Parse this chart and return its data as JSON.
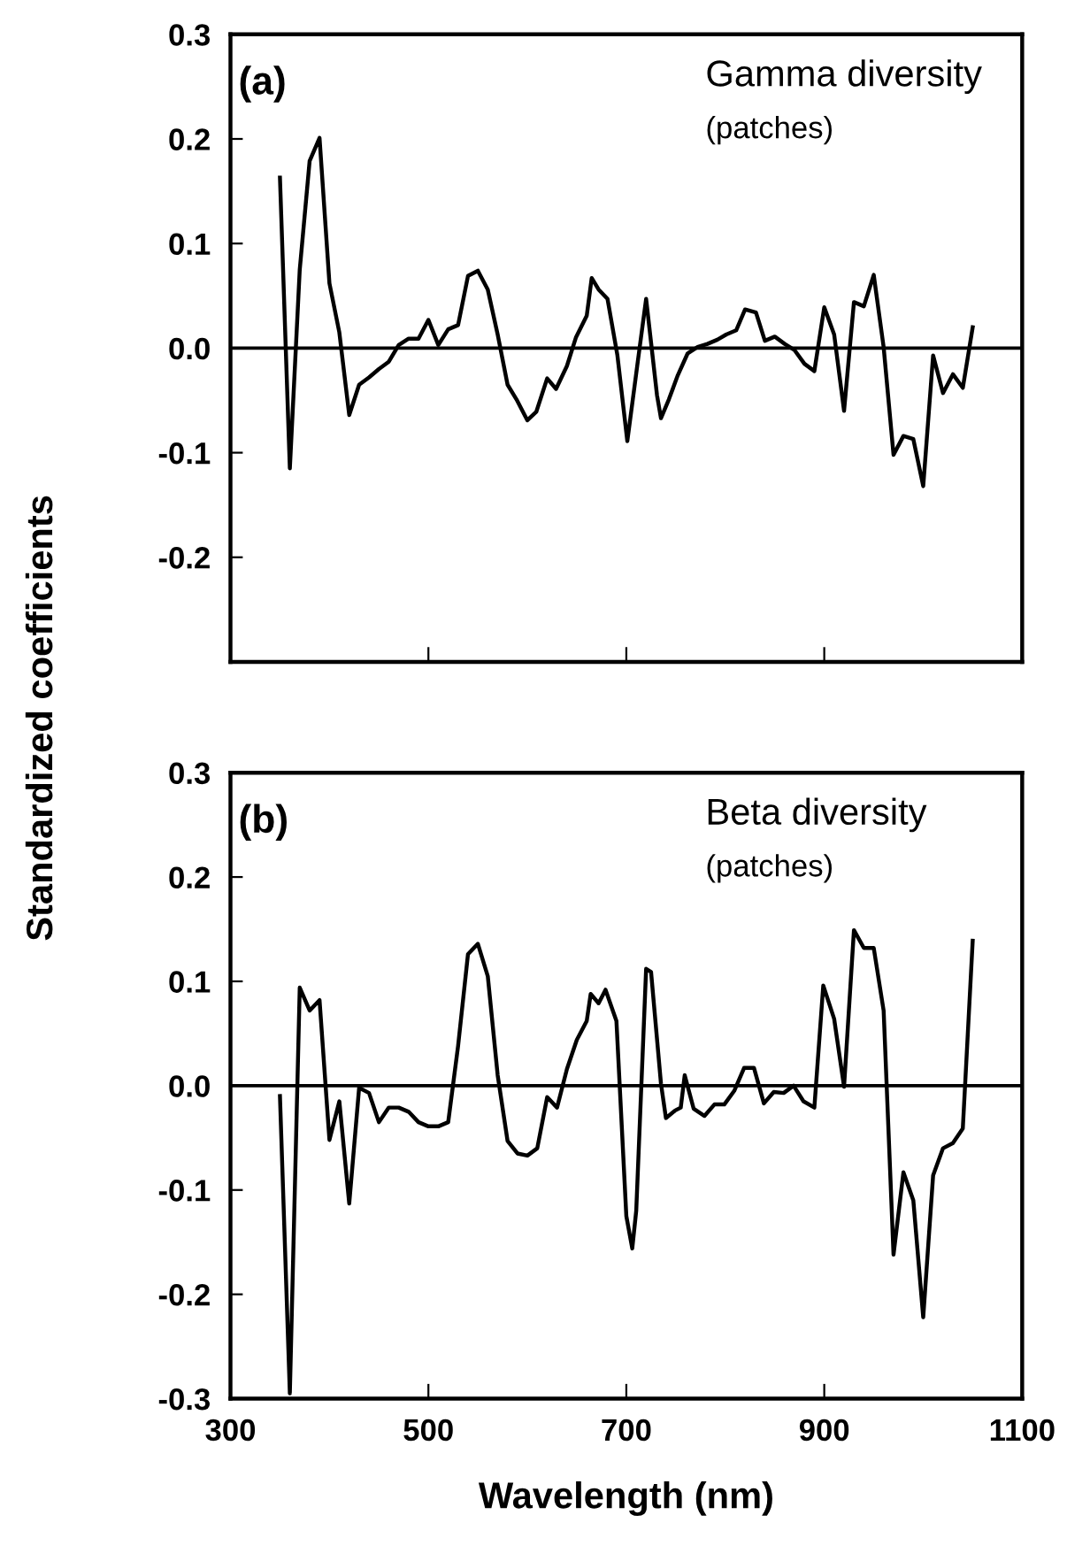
{
  "chart_data": [
    {
      "type": "line",
      "ylabel": "Standardized coefficients",
      "annotations": [
        "(a)",
        "Gamma diversity",
        "(patches)"
      ],
      "series": [
        {
          "color": "#000000",
          "x": [
            350,
            360,
            370,
            380,
            390,
            400,
            410,
            420,
            430,
            440,
            450,
            460,
            470,
            480,
            490,
            500,
            510,
            520,
            530,
            540,
            550,
            560,
            570,
            580,
            589,
            600,
            609,
            620,
            629,
            640,
            649,
            660,
            665,
            672,
            681,
            691,
            701,
            711,
            720,
            731,
            735,
            743,
            752,
            762,
            772,
            782,
            792,
            801,
            811,
            820,
            831,
            840,
            850,
            860,
            870,
            880,
            890,
            900,
            910,
            920,
            930,
            940,
            950,
            960,
            970,
            980,
            990,
            1000,
            1010,
            1020,
            1030,
            1040,
            1050
          ],
          "values": [
            0.163,
            -0.115,
            0.075,
            0.179,
            0.201,
            0.062,
            0.015,
            -0.064,
            -0.035,
            -0.028,
            -0.02,
            -0.013,
            0.003,
            0.009,
            0.009,
            0.027,
            0.003,
            0.018,
            0.022,
            0.069,
            0.074,
            0.056,
            0.013,
            -0.035,
            -0.049,
            -0.069,
            -0.061,
            -0.029,
            -0.039,
            -0.017,
            0.01,
            0.031,
            0.067,
            0.056,
            0.047,
            -0.007,
            -0.089,
            -0.017,
            0.047,
            -0.045,
            -0.067,
            -0.049,
            -0.026,
            -0.005,
            0.001,
            0.004,
            0.008,
            0.013,
            0.017,
            0.037,
            0.034,
            0.007,
            0.011,
            0.004,
            -0.002,
            -0.015,
            -0.022,
            0.039,
            0.013,
            -0.06,
            0.044,
            0.04,
            0.07,
            0.001,
            -0.102,
            -0.084,
            -0.087,
            -0.132,
            -0.007,
            -0.043,
            -0.025,
            -0.038,
            0.02
          ]
        }
      ],
      "xlim": [
        300,
        1100
      ],
      "xticks": [
        500,
        700,
        900
      ],
      "ylim": [
        -0.3,
        0.3
      ],
      "yticks": [
        -0.2,
        -0.1,
        {
          "value": 0,
          "label": "0.0"
        },
        0.1,
        0.2,
        0.3
      ],
      "ref_lines": [
        {
          "axis": "y",
          "value": 0,
          "color": "#000000"
        }
      ],
      "tick_labels": "y",
      "grid": false,
      "legend": false
    },
    {
      "type": "line",
      "xlabel": "Wavelength (nm)",
      "annotations": [
        "(b)",
        "Beta diversity",
        "(patches)"
      ],
      "series": [
        {
          "color": "#000000",
          "x": [
            350,
            360,
            370,
            380,
            390,
            400,
            410,
            420,
            430,
            440,
            450,
            460,
            470,
            480,
            490,
            500,
            510,
            520,
            530,
            540,
            550,
            560,
            570,
            580,
            590,
            600,
            610,
            620,
            630,
            640,
            650,
            660,
            664,
            672,
            679,
            690,
            700,
            706,
            710,
            720,
            725,
            735,
            740,
            749,
            755,
            759,
            768,
            779,
            789,
            799,
            809,
            819,
            829,
            839,
            849,
            859,
            869,
            879,
            890,
            899,
            910,
            920,
            930,
            940,
            950,
            960,
            970,
            980,
            990,
            1000,
            1010,
            1020,
            1030,
            1040,
            1050
          ],
          "values": [
            -0.01,
            -0.295,
            0.094,
            0.072,
            0.082,
            -0.052,
            -0.015,
            -0.113,
            -0.002,
            -0.007,
            -0.035,
            -0.021,
            -0.021,
            -0.025,
            -0.035,
            -0.039,
            -0.039,
            -0.035,
            0.038,
            0.126,
            0.136,
            0.105,
            0.01,
            -0.053,
            -0.065,
            -0.067,
            -0.06,
            -0.011,
            -0.021,
            0.016,
            0.044,
            0.062,
            0.088,
            0.079,
            0.092,
            0.062,
            -0.125,
            -0.156,
            -0.12,
            0.112,
            0.109,
            0.002,
            -0.031,
            -0.024,
            -0.021,
            0.01,
            -0.022,
            -0.029,
            -0.018,
            -0.018,
            -0.005,
            0.017,
            0.017,
            -0.017,
            -0.006,
            -0.007,
            0.0,
            -0.015,
            -0.021,
            0.096,
            0.064,
            -0.001,
            0.149,
            0.132,
            0.132,
            0.072,
            -0.162,
            -0.083,
            -0.11,
            -0.222,
            -0.086,
            -0.06,
            -0.055,
            -0.041,
            0.139
          ]
        }
      ],
      "xlim": [
        300,
        1100
      ],
      "xticks": [
        300,
        500,
        700,
        900,
        1100
      ],
      "ylim": [
        -0.3,
        0.3
      ],
      "yticks": [
        -0.3,
        -0.2,
        -0.1,
        {
          "value": 0,
          "label": "0.0"
        },
        0.1,
        0.2,
        0.3
      ],
      "ref_lines": [
        {
          "axis": "y",
          "value": 0,
          "color": "#000000"
        }
      ],
      "grid": false,
      "legend": false
    }
  ]
}
